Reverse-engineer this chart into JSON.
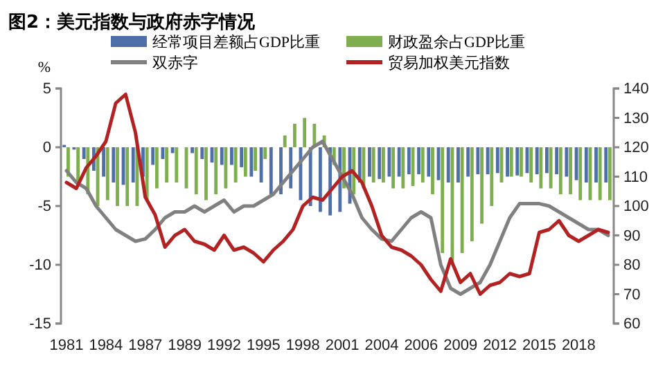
{
  "chart_data": {
    "type": "bar",
    "title": "图2：美元指数与政府赤字情况",
    "ylabel": "%",
    "categories": [
      "1981",
      null,
      null,
      null,
      "1984",
      null,
      null,
      null,
      "1987",
      null,
      null,
      null,
      "1989",
      null,
      null,
      null,
      "1992",
      null,
      null,
      null,
      "1995",
      null,
      null,
      null,
      "1998",
      null,
      null,
      null,
      "2001",
      null,
      null,
      null,
      "2004",
      null,
      null,
      null,
      "2006",
      null,
      null,
      null,
      "2009",
      null,
      null,
      null,
      "2012",
      null,
      null,
      null,
      "2015",
      null,
      null,
      null,
      "2018",
      null,
      null,
      null
    ],
    "series": [
      {
        "name": "经常项目差额占GDP比重",
        "color": "#4f6fa8",
        "values": [
          0.2,
          -0.2,
          -1,
          -2,
          -2.5,
          -3,
          -3.2,
          -3,
          -2.5,
          -1.5,
          -1,
          -0.5,
          0,
          -0.5,
          -1,
          -1.3,
          -1.5,
          -1.5,
          -1.7,
          -2.5,
          -3,
          -4,
          -4,
          -3.5,
          -4.5,
          -5,
          -5.5,
          -5.8,
          -5.5,
          -4.8,
          -3,
          -2.5,
          -2.7,
          -2.5,
          -2.5,
          -2.3,
          -2.3,
          -2.5,
          -2.8,
          -3,
          -3,
          -2.5,
          -2.3,
          -2.3,
          -2.2,
          -2.5,
          -2.4,
          -2.2,
          -2.3,
          -2.2,
          -2.3,
          -2.5,
          -2.8,
          -3,
          -3,
          -3
        ]
      },
      {
        "name": "财政盈余占GDP比重",
        "color": "#7fae4f",
        "values": [
          -2.5,
          -3,
          -4,
          -5,
          -4.5,
          -5,
          -5,
          -5,
          -4.5,
          -3.5,
          -3,
          -3,
          -3.5,
          -4,
          -4.5,
          -4,
          -3.5,
          -3,
          -2.5,
          -2,
          -1,
          0,
          1,
          2,
          2.5,
          2,
          1,
          -1.5,
          -3.5,
          -4,
          -3.5,
          -3,
          -3,
          -3.5,
          -3.5,
          -3.3,
          -3,
          -4,
          -9,
          -10,
          -9,
          -8,
          -6.5,
          -5,
          -3,
          -2.5,
          -2.5,
          -3,
          -3.5,
          -3.5,
          -4,
          -4,
          -4.5,
          -4.5,
          -4.5,
          -4.5
        ]
      },
      {
        "name": "双赤字",
        "type": "line",
        "color": "#808080",
        "values": [
          -2,
          -3,
          -3.5,
          -5,
          -6,
          -7,
          -7.5,
          -8,
          -7.8,
          -7,
          -6,
          -5.5,
          -5.5,
          -5,
          -5.5,
          -5,
          -4.5,
          -5.5,
          -5,
          -5,
          -4.5,
          -4,
          -3,
          -2,
          -1,
          0,
          0.5,
          -1,
          -2.5,
          -4,
          -6,
          -7,
          -7.8,
          -8,
          -7,
          -6,
          -5.5,
          -6,
          -10,
          -12,
          -12.5,
          -12,
          -11.5,
          -10,
          -8,
          -6,
          -4.8,
          -4.8,
          -4.8,
          -5,
          -5.5,
          -6,
          -6.5,
          -7,
          -7,
          -7.5
        ]
      },
      {
        "name": "贸易加权美元指数",
        "type": "line",
        "axis": "y2",
        "color": "#b22222",
        "values": [
          108,
          106,
          113,
          117,
          122,
          135,
          138,
          125,
          103,
          97,
          86,
          90,
          92,
          88,
          87,
          85,
          90,
          85,
          86,
          84,
          81,
          85,
          88,
          92,
          100,
          103,
          102,
          106,
          110,
          112,
          108,
          100,
          90,
          86,
          85,
          83,
          80,
          75,
          71,
          82,
          74,
          77,
          70,
          73,
          74,
          77,
          76,
          77,
          91,
          92,
          95,
          90,
          88,
          90,
          92,
          91
        ]
      }
    ],
    "ylim": [
      -15,
      5
    ],
    "yticks": [
      -15,
      -10,
      -5,
      0,
      5
    ],
    "y2lim": [
      60,
      140
    ],
    "y2ticks": [
      60,
      70,
      80,
      90,
      100,
      110,
      120,
      130,
      140
    ],
    "legend": "top",
    "grid": false
  }
}
